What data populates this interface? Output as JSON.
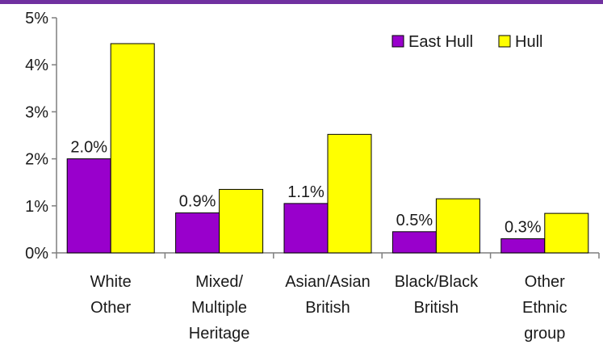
{
  "colors": {
    "top_strip": "#7030a0",
    "axis": "#7f7f7f",
    "text": "#1a1a1a"
  },
  "chart_data": {
    "type": "bar",
    "title": "",
    "xlabel": "",
    "ylabel": "",
    "ylim": [
      0,
      5
    ],
    "y_ticks": [
      0,
      1,
      2,
      3,
      4,
      5
    ],
    "y_tick_labels": [
      "0%",
      "1%",
      "2%",
      "3%",
      "4%",
      "5%"
    ],
    "grid": false,
    "legend_position": "top-right",
    "categories": [
      [
        "White",
        "Other"
      ],
      [
        "Mixed/",
        "Multiple",
        "Heritage"
      ],
      [
        "Asian/Asian",
        "British"
      ],
      [
        "Black/Black",
        "British"
      ],
      [
        "Other",
        "Ethnic",
        "group"
      ]
    ],
    "series": [
      {
        "name": "East Hull",
        "color": "#9900cc",
        "values": [
          2.0,
          0.85,
          1.05,
          0.45,
          0.3
        ],
        "data_labels": [
          "2.0%",
          "0.9%",
          "1.1%",
          "0.5%",
          "0.3%"
        ]
      },
      {
        "name": "Hull",
        "color": "#ffff00",
        "values": [
          4.45,
          1.35,
          2.52,
          1.15,
          0.84
        ],
        "data_labels": [
          "",
          "",
          "",
          "",
          ""
        ]
      }
    ]
  }
}
